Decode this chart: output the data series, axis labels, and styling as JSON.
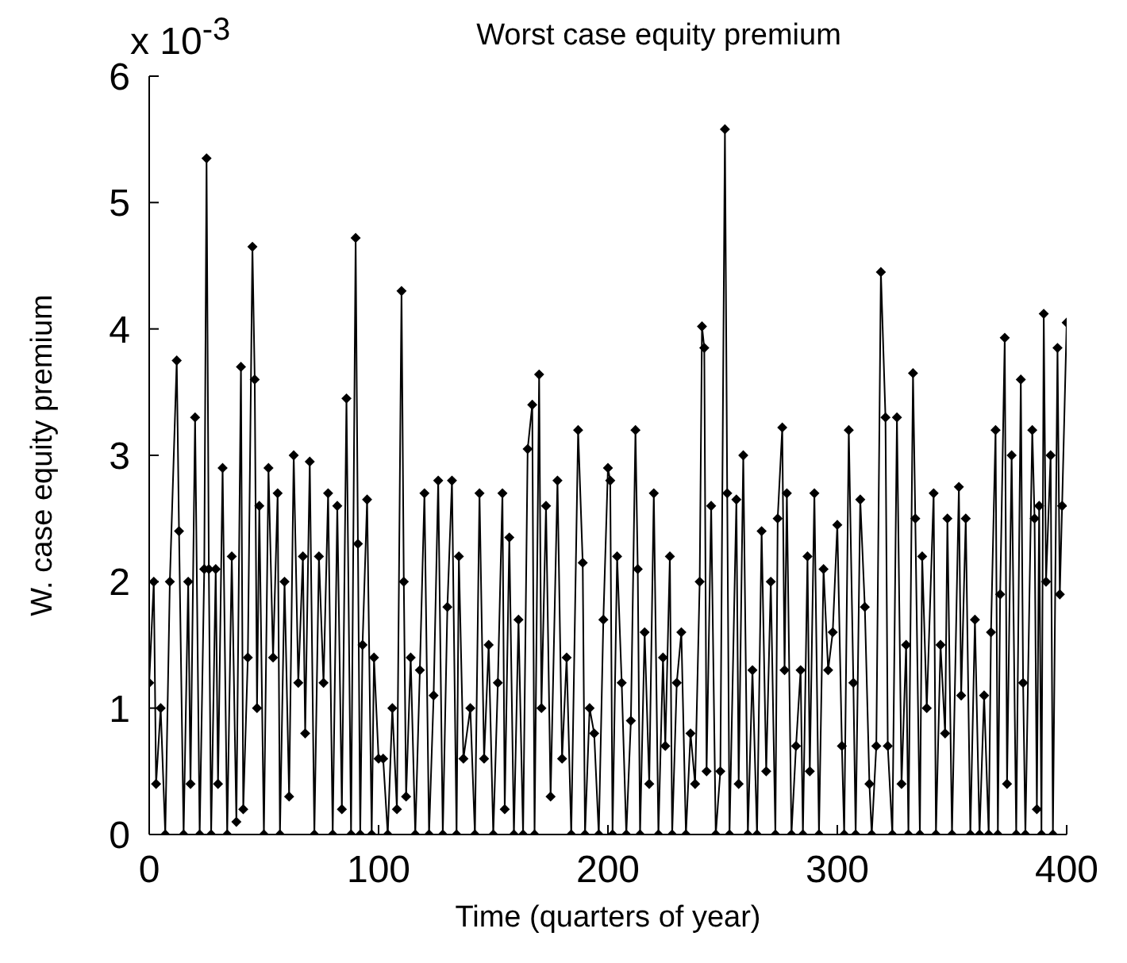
{
  "chart_data": {
    "type": "line",
    "title": "Worst case equity premium",
    "xlabel": "Time (quarters of year)",
    "ylabel": "W. case equity premium",
    "annotations": [
      "x 10$^{-3}$"
    ],
    "xlim": [
      0,
      400
    ],
    "xticks": [
      0,
      100,
      200,
      300,
      400
    ],
    "ylim": [
      0,
      6
    ],
    "yticks": [
      0,
      1,
      2,
      3,
      4,
      5,
      6
    ],
    "marker": "diamond",
    "line_style": "solid",
    "series": [
      {
        "color": "#000000",
        "x": [
          0,
          2,
          3,
          5,
          7,
          9,
          12,
          13,
          15,
          17,
          18,
          20,
          22,
          24,
          25,
          26,
          27,
          29,
          30,
          32,
          34,
          36,
          38,
          40,
          41,
          43,
          45,
          46,
          47,
          48,
          50,
          52,
          54,
          56,
          57,
          59,
          61,
          63,
          65,
          67,
          68,
          70,
          72,
          74,
          76,
          78,
          80,
          82,
          84,
          86,
          88,
          90,
          91,
          92,
          93,
          95,
          97,
          98,
          100,
          102,
          104,
          106,
          108,
          110,
          111,
          112,
          114,
          116,
          118,
          120,
          122,
          124,
          126,
          128,
          130,
          132,
          134,
          135,
          137,
          140,
          142,
          144,
          146,
          148,
          150,
          152,
          154,
          155,
          157,
          159,
          161,
          163,
          165,
          167,
          168,
          170,
          171,
          173,
          175,
          178,
          180,
          182,
          184,
          187,
          189,
          190,
          192,
          194,
          196,
          198,
          200,
          201,
          202,
          204,
          206,
          208,
          210,
          212,
          213,
          214,
          216,
          218,
          220,
          222,
          224,
          225,
          227,
          228,
          230,
          232,
          234,
          236,
          238,
          240,
          241,
          242,
          243,
          245,
          247,
          249,
          251,
          252,
          253,
          256,
          257,
          259,
          261,
          263,
          265,
          267,
          269,
          271,
          273,
          274,
          276,
          277,
          278,
          280,
          282,
          284,
          285,
          287,
          288,
          290,
          292,
          294,
          296,
          298,
          300,
          302,
          303,
          305,
          307,
          308,
          310,
          312,
          314,
          315,
          317,
          319,
          321,
          322,
          324,
          326,
          328,
          330,
          331,
          333,
          334,
          336,
          337,
          339,
          342,
          343,
          345,
          347,
          348,
          350,
          353,
          354,
          356,
          358,
          360,
          362,
          364,
          366,
          367,
          369,
          370,
          371,
          373,
          374,
          376,
          378,
          380,
          381,
          382,
          385,
          386,
          387,
          388,
          389,
          390,
          391,
          393,
          394,
          396,
          397,
          398,
          400
        ],
        "values": [
          1.2,
          2.0,
          0.4,
          1.0,
          0,
          2.0,
          3.75,
          2.4,
          0,
          2.0,
          0.4,
          3.3,
          0,
          2.1,
          5.35,
          2.1,
          0,
          2.1,
          0.4,
          2.9,
          0,
          2.2,
          0.1,
          3.7,
          0.2,
          1.4,
          4.65,
          3.6,
          1.0,
          2.6,
          0,
          2.9,
          1.4,
          2.7,
          0,
          2.0,
          0.3,
          3.0,
          1.2,
          2.2,
          0.8,
          2.95,
          0,
          2.2,
          1.2,
          2.7,
          0,
          2.6,
          0.2,
          3.45,
          0,
          4.72,
          2.3,
          0,
          1.5,
          2.65,
          0,
          1.4,
          0.6,
          0.6,
          0,
          1.0,
          0.2,
          4.3,
          2.0,
          0.3,
          1.4,
          0,
          1.3,
          2.7,
          0,
          1.1,
          2.8,
          0,
          1.8,
          2.8,
          0,
          2.2,
          0.6,
          1.0,
          0,
          2.7,
          0.6,
          1.5,
          0,
          1.2,
          2.7,
          0.2,
          2.35,
          0,
          1.7,
          0,
          3.05,
          3.4,
          0,
          3.64,
          1.0,
          2.6,
          0.3,
          2.8,
          0.6,
          1.4,
          0,
          3.2,
          2.15,
          0,
          1.0,
          0.8,
          0,
          1.7,
          2.9,
          2.8,
          0,
          2.2,
          1.2,
          0,
          0.9,
          3.2,
          2.1,
          0,
          1.6,
          0.4,
          2.7,
          0,
          1.4,
          0.7,
          2.2,
          0,
          1.2,
          1.6,
          0,
          0.8,
          0.4,
          2.0,
          4.02,
          3.85,
          0.5,
          2.6,
          0,
          0.5,
          5.58,
          2.7,
          0,
          2.65,
          0.4,
          3.0,
          0,
          1.3,
          0,
          2.4,
          0.5,
          2.0,
          0,
          2.5,
          3.22,
          1.3,
          2.7,
          0,
          0.7,
          1.3,
          0,
          2.2,
          0.5,
          2.7,
          0,
          2.1,
          1.3,
          1.6,
          2.45,
          0.7,
          0,
          3.2,
          1.2,
          0,
          2.65,
          1.8,
          0.4,
          0,
          0.7,
          4.45,
          3.3,
          0.7,
          0,
          3.3,
          0.4,
          1.5,
          0,
          3.65,
          2.5,
          0,
          2.2,
          1.0,
          2.7,
          0,
          1.5,
          0.8,
          2.5,
          0,
          2.75,
          1.1,
          2.5,
          0,
          1.7,
          0,
          1.1,
          0,
          1.6,
          3.2,
          0,
          1.9,
          3.93,
          0.4,
          3.0,
          0,
          3.6,
          1.2,
          0,
          3.2,
          2.5,
          0.2,
          2.6,
          0,
          4.12,
          2.0,
          3.0,
          0,
          3.85,
          1.9,
          2.6,
          4.05
        ]
      }
    ]
  }
}
